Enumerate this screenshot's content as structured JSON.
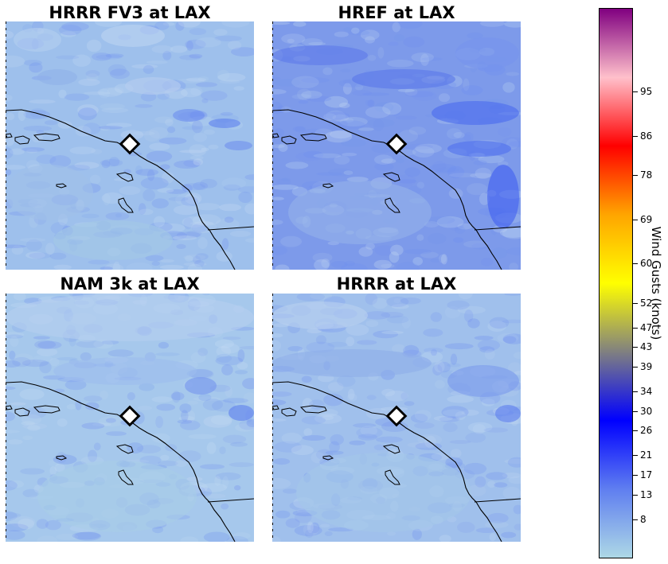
{
  "panels": [
    {
      "title": "HRRR FV3 at LAX",
      "base": "#9ec0ec",
      "style": "fv3"
    },
    {
      "title": "HREF at LAX",
      "base": "#7d9aea",
      "style": "href"
    },
    {
      "title": "NAM 3k at LAX",
      "base": "#a6c8ec",
      "style": "nam"
    },
    {
      "title": "HRRR at LAX",
      "base": "#a0c0ec",
      "style": "hrrr"
    }
  ],
  "station_marker": "LAX",
  "colorbar": {
    "label": "Wind Gusts (knots)",
    "ticks": [
      "8",
      "13",
      "17",
      "21",
      "26",
      "30",
      "34",
      "39",
      "43",
      "47",
      "52",
      "60",
      "69",
      "78",
      "86",
      "95"
    ],
    "tick_values": [
      8,
      13,
      17,
      21,
      26,
      30,
      34,
      39,
      43,
      47,
      52,
      60,
      69,
      78,
      86,
      95
    ],
    "range": [
      0,
      112
    ],
    "colors": [
      "#add8e6",
      "#5f7ef0",
      "#0000ff",
      "#808080",
      "#ffff00",
      "#ffa500",
      "#ff0000",
      "#ffc0cb",
      "#800080"
    ]
  }
}
